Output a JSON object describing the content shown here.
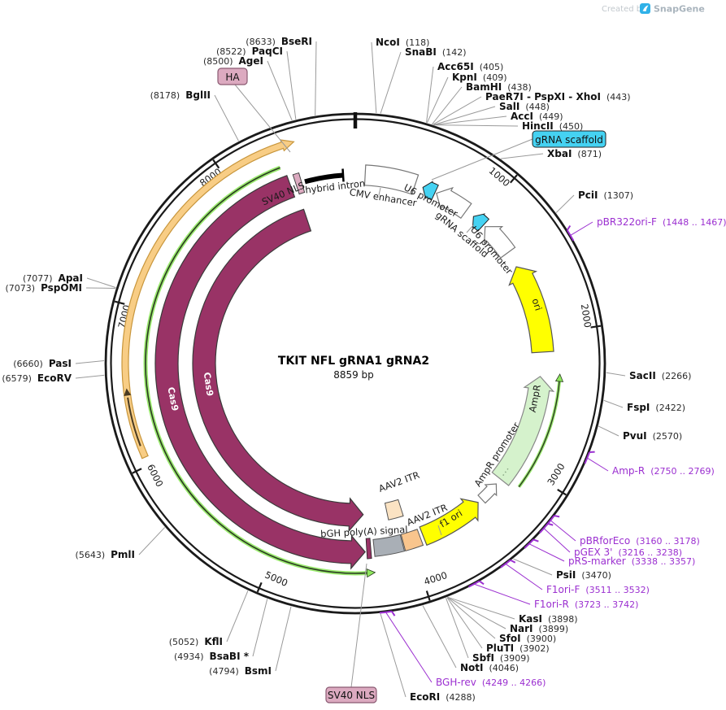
{
  "watermark": {
    "created_by": "Created by",
    "brand": "SnapGene"
  },
  "plasmid": {
    "title": "TKIT NFL gRNA1 gRNA2",
    "length": "8859 bp",
    "total_bp": 8859
  },
  "scale": {
    "ticks": [
      "1000",
      "2000",
      "3000",
      "4000",
      "5000",
      "6000",
      "7000",
      "8000"
    ]
  },
  "enzymes": [
    {
      "name": "NcoI",
      "pos": "(118)"
    },
    {
      "name": "SnaBI",
      "pos": "(142)"
    },
    {
      "name": "Acc65I",
      "pos": "(405)"
    },
    {
      "name": "KpnI",
      "pos": "(409)"
    },
    {
      "name": "BamHI",
      "pos": "(438)"
    },
    {
      "name": "PaeR7I - PspXI - XhoI",
      "pos": "(443)"
    },
    {
      "name": "SalI",
      "pos": "(448)"
    },
    {
      "name": "AccI",
      "pos": "(449)"
    },
    {
      "name": "HincII",
      "pos": "(450)"
    },
    {
      "name": "XbaI",
      "pos": "(871)"
    },
    {
      "name": "PciI",
      "pos": "(1307)"
    },
    {
      "name": "SacII",
      "pos": "(2266)"
    },
    {
      "name": "FspI",
      "pos": "(2422)"
    },
    {
      "name": "PvuI",
      "pos": "(2570)"
    },
    {
      "name": "PsiI",
      "pos": "(3470)"
    },
    {
      "name": "KasI",
      "pos": "(3898)"
    },
    {
      "name": "NarI",
      "pos": "(3899)"
    },
    {
      "name": "SfoI",
      "pos": "(3900)"
    },
    {
      "name": "PluTI",
      "pos": "(3902)"
    },
    {
      "name": "SbfI",
      "pos": "(3909)"
    },
    {
      "name": "NotI",
      "pos": "(4046)"
    },
    {
      "name": "EcoRI",
      "pos": "(4288)"
    },
    {
      "name": "BsmI",
      "pos": "(4794)"
    },
    {
      "name": "BsaBI *",
      "pos": "(4934)"
    },
    {
      "name": "KflI",
      "pos": "(5052)"
    },
    {
      "name": "PmlI",
      "pos": "(5643)"
    },
    {
      "name": "EcoRV",
      "pos": "(6579)"
    },
    {
      "name": "PasI",
      "pos": "(6660)"
    },
    {
      "name": "ApaI",
      "pos": "(7077)"
    },
    {
      "name": "PspOMI",
      "pos": "(7073)"
    },
    {
      "name": "BglII",
      "pos": "(8178)"
    },
    {
      "name": "AgeI",
      "pos": "(8500)"
    },
    {
      "name": "PaqCI",
      "pos": "(8522)"
    },
    {
      "name": "BseRI",
      "pos": "(8633)"
    }
  ],
  "primers": [
    {
      "name": "pBR322ori-F",
      "range": "(1448 .. 1467)"
    },
    {
      "name": "Amp-R",
      "range": "(2750 .. 2769)"
    },
    {
      "name": "pBRforEco",
      "range": "(3160 .. 3178)"
    },
    {
      "name": "pGEX 3'",
      "range": "(3216 .. 3238)"
    },
    {
      "name": "pRS-marker",
      "range": "(3338 .. 3357)"
    },
    {
      "name": "F1ori-F",
      "range": "(3511 .. 3532)"
    },
    {
      "name": "F1ori-R",
      "range": "(3723 .. 3742)"
    },
    {
      "name": "BGH-rev",
      "range": "(4249 .. 4266)"
    }
  ],
  "features": {
    "cas9_outer": "Cas9",
    "cas9_inner": "Cas9",
    "sv40_nls_top": "SV40 NLS",
    "hybrid_intron": "hybrid intron",
    "cmv_enhancer": "CMV enhancer",
    "u6_promoter_1": "U6 promoter",
    "grna_scaffold_inline": "gRNA scaffold",
    "u6_promoter_2": "U6 promoter",
    "ori": "ori",
    "ampr": "AmpR",
    "ampr_promoter": "AmpR promoter",
    "f1_ori": "f1 ori",
    "aav2_itr_1": "AAV2 ITR",
    "aav2_itr_2": "AAV2 ITR",
    "bgh_polya": "bGH poly(A) signal",
    "sv40_nls_callout": "SV40 NLS",
    "ha_tag": "HA",
    "grna_scaffold_callout": "gRNA scaffold"
  },
  "colors": {
    "cds_maroon": "#993366",
    "primer_purple": "#9b2fd0",
    "scaffold_cyan": "#45d2f2",
    "ori_yellow": "#ffff00",
    "ampr_green": "#d5f2cc",
    "itr_peach": "#f9c58d",
    "itr_peach_light": "#fbe3c3",
    "bgh_gray": "#a9afb6",
    "orf_orange": "#f8cd85",
    "orf_green": "#8fe75e",
    "tag_pink": "#dcaac0",
    "backbone_black": "#1a1a1a"
  }
}
